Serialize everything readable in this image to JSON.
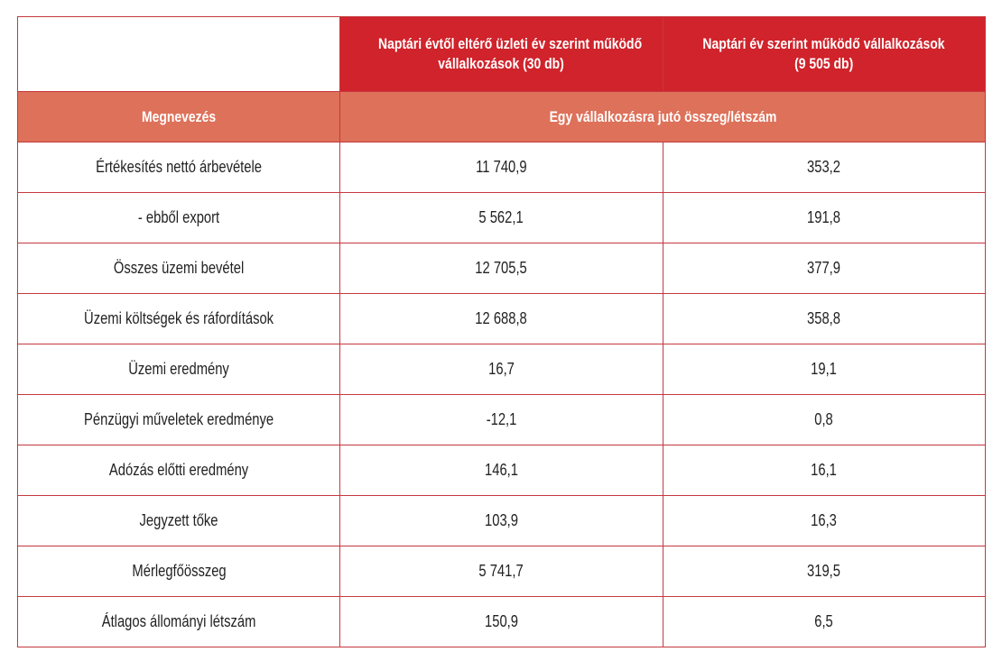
{
  "header": {
    "col1": [
      "Naptári évtől eltérő üzleti év szerint működő",
      "vállalkozások (30 db)"
    ],
    "col2": [
      "Naptári év szerint működő vállalkozások",
      "(9 505 db)"
    ],
    "name_label": "Megnevezés",
    "sub_label": "Egy vállalkozásra jutó összeg/létszám"
  },
  "colors": {
    "header_red": "#d0232b",
    "subheader_salmon": "#de715a",
    "border": "#c4383e"
  },
  "rows": [
    {
      "name": "Értékesítés nettó árbevétele",
      "a": "11 740,9",
      "b": "353,2"
    },
    {
      "name": "- ebből export",
      "a": "5 562,1",
      "b": "191,8"
    },
    {
      "name": "Összes üzemi bevétel",
      "a": "12 705,5",
      "b": "377,9"
    },
    {
      "name": "Üzemi költségek és ráfordítások",
      "a": "12 688,8",
      "b": "358,8"
    },
    {
      "name": "Üzemi eredmény",
      "a": "16,7",
      "b": "19,1"
    },
    {
      "name": "Pénzügyi műveletek eredménye",
      "a": "-12,1",
      "b": "0,8"
    },
    {
      "name": "Adózás előtti eredmény",
      "a": "146,1",
      "b": "16,1"
    },
    {
      "name": "Jegyzett tőke",
      "a": "103,9",
      "b": "16,3"
    },
    {
      "name": "Mérlegfőösszeg",
      "a": "5 741,7",
      "b": "319,5"
    },
    {
      "name": "Átlagos állományi létszám",
      "a": "150,9",
      "b": "6,5"
    }
  ]
}
